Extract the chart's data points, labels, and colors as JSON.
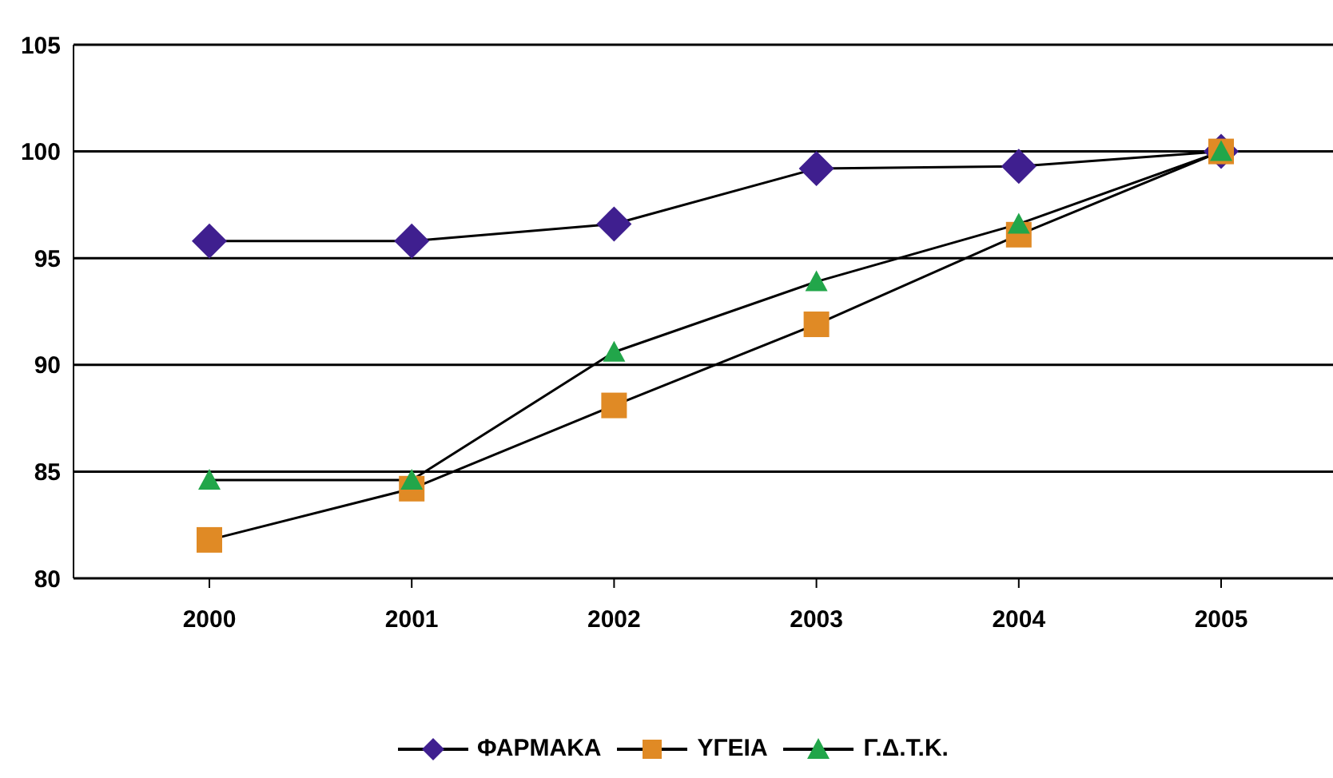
{
  "chart_data": {
    "type": "line",
    "categories": [
      "2000",
      "2001",
      "2002",
      "2003",
      "2004",
      "2005"
    ],
    "series": [
      {
        "name": "ΦΑΡΜΑΚΑ",
        "color": "#3f1f8f",
        "marker": "diamond",
        "values": [
          95.8,
          95.8,
          96.6,
          99.2,
          99.3,
          100
        ]
      },
      {
        "name": "ΥΓΕΙΑ",
        "color": "#e08a25",
        "marker": "square",
        "values": [
          81.8,
          84.2,
          88.1,
          91.9,
          96.1,
          100
        ]
      },
      {
        "name": "Γ.Δ.Τ.Κ.",
        "color": "#22a64a",
        "marker": "triangle",
        "values": [
          84.6,
          84.6,
          90.6,
          93.9,
          96.6,
          100
        ]
      }
    ],
    "ylim": [
      80,
      105
    ],
    "yticks": [
      80,
      85,
      90,
      95,
      100,
      105
    ],
    "grid": "y",
    "legend": "bottom",
    "line_style": "solid"
  }
}
